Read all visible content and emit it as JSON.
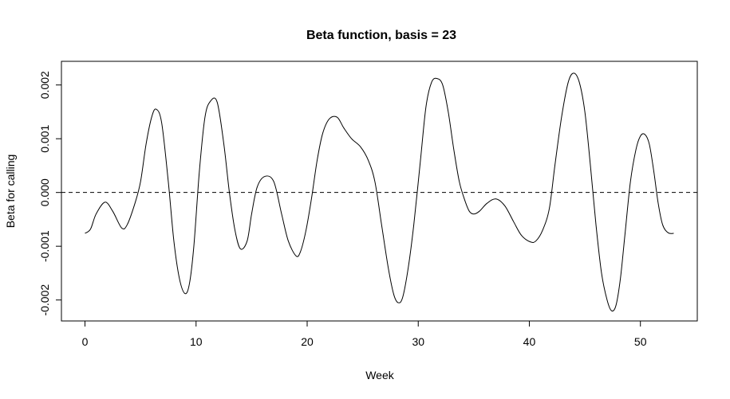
{
  "chart_data": {
    "type": "line",
    "title": "Beta function, basis = 23",
    "xlabel": "Week",
    "ylabel": "Beta for calling",
    "xlim": [
      -2.12,
      55.12
    ],
    "ylim": [
      -0.00239,
      0.00244
    ],
    "x_ticks": [
      0,
      10,
      20,
      30,
      40,
      50
    ],
    "x_tick_labels": [
      "0",
      "10",
      "20",
      "30",
      "40",
      "50"
    ],
    "y_ticks": [
      -0.002,
      -0.001,
      0.0,
      0.001,
      0.002
    ],
    "y_tick_labels": [
      "-0.002",
      "-0.001",
      "0.000",
      "0.001",
      "0.002"
    ],
    "reference_line": {
      "y": 0,
      "style": "dashed"
    },
    "grid": false,
    "series": [
      {
        "x": [
          0,
          0.5,
          1,
          1.8,
          2.5,
          3.3,
          3.8,
          4.5,
          5,
          5.5,
          6,
          6.4,
          6.9,
          7.5,
          8,
          8.5,
          9,
          9.4,
          9.8,
          10.3,
          10.8,
          11.3,
          11.9,
          12.5,
          13,
          13.5,
          14,
          14.6,
          15,
          15.5,
          16.2,
          17,
          17.7,
          18.3,
          19,
          19.4,
          19.9,
          20.4,
          20.9,
          21.4,
          22,
          22.7,
          23.3,
          24,
          24.8,
          25.5,
          26.1,
          26.7,
          27.3,
          27.8,
          28.2,
          28.6,
          29.1,
          29.6,
          30.2,
          30.7,
          31.2,
          31.7,
          32.2,
          32.7,
          33.2,
          33.7,
          34.2,
          34.6,
          35,
          35.5,
          36.2,
          37,
          37.8,
          38.6,
          39.3,
          40.1,
          40.6,
          41.2,
          41.8,
          42.3,
          42.9,
          43.5,
          44,
          44.5,
          45,
          45.5,
          46,
          46.5,
          47,
          47.4,
          47.8,
          48.2,
          48.6,
          49.1,
          49.6,
          50,
          50.4,
          50.8,
          51.2,
          51.6,
          52,
          52.5,
          53
        ],
        "y": [
          -0.00076,
          -0.00068,
          -0.0004,
          -0.00018,
          -0.00035,
          -0.00066,
          -0.0006,
          -0.0002,
          0.0002,
          0.0009,
          0.0014,
          0.00155,
          0.0013,
          0.0002,
          -0.0009,
          -0.0016,
          -0.00188,
          -0.0017,
          -0.001,
          0.0004,
          0.0014,
          0.0017,
          0.00168,
          0.0009,
          0.0,
          -0.0007,
          -0.00105,
          -0.0009,
          -0.0004,
          0.0001,
          0.0003,
          0.0002,
          -0.0004,
          -0.0009,
          -0.00118,
          -0.0011,
          -0.0007,
          -0.0001,
          0.0006,
          0.0011,
          0.00137,
          0.0014,
          0.0012,
          0.001,
          0.00085,
          0.0006,
          0.0002,
          -0.0006,
          -0.0014,
          -0.0019,
          -0.00205,
          -0.00195,
          -0.0014,
          -0.0006,
          0.0006,
          0.0016,
          0.00205,
          0.00212,
          0.002,
          0.0015,
          0.0008,
          0.0002,
          -0.00015,
          -0.00035,
          -0.0004,
          -0.00035,
          -0.0002,
          -0.00012,
          -0.00025,
          -0.00055,
          -0.0008,
          -0.00092,
          -0.0009,
          -0.0007,
          -0.0003,
          0.0005,
          0.0014,
          0.00205,
          0.00222,
          0.00205,
          0.0015,
          0.0005,
          -0.0006,
          -0.0015,
          -0.002,
          -0.0022,
          -0.0021,
          -0.0016,
          -0.0008,
          0.0002,
          0.0008,
          0.00105,
          0.00108,
          0.0009,
          0.0004,
          -0.0002,
          -0.0006,
          -0.00075,
          -0.00076
        ]
      }
    ]
  }
}
